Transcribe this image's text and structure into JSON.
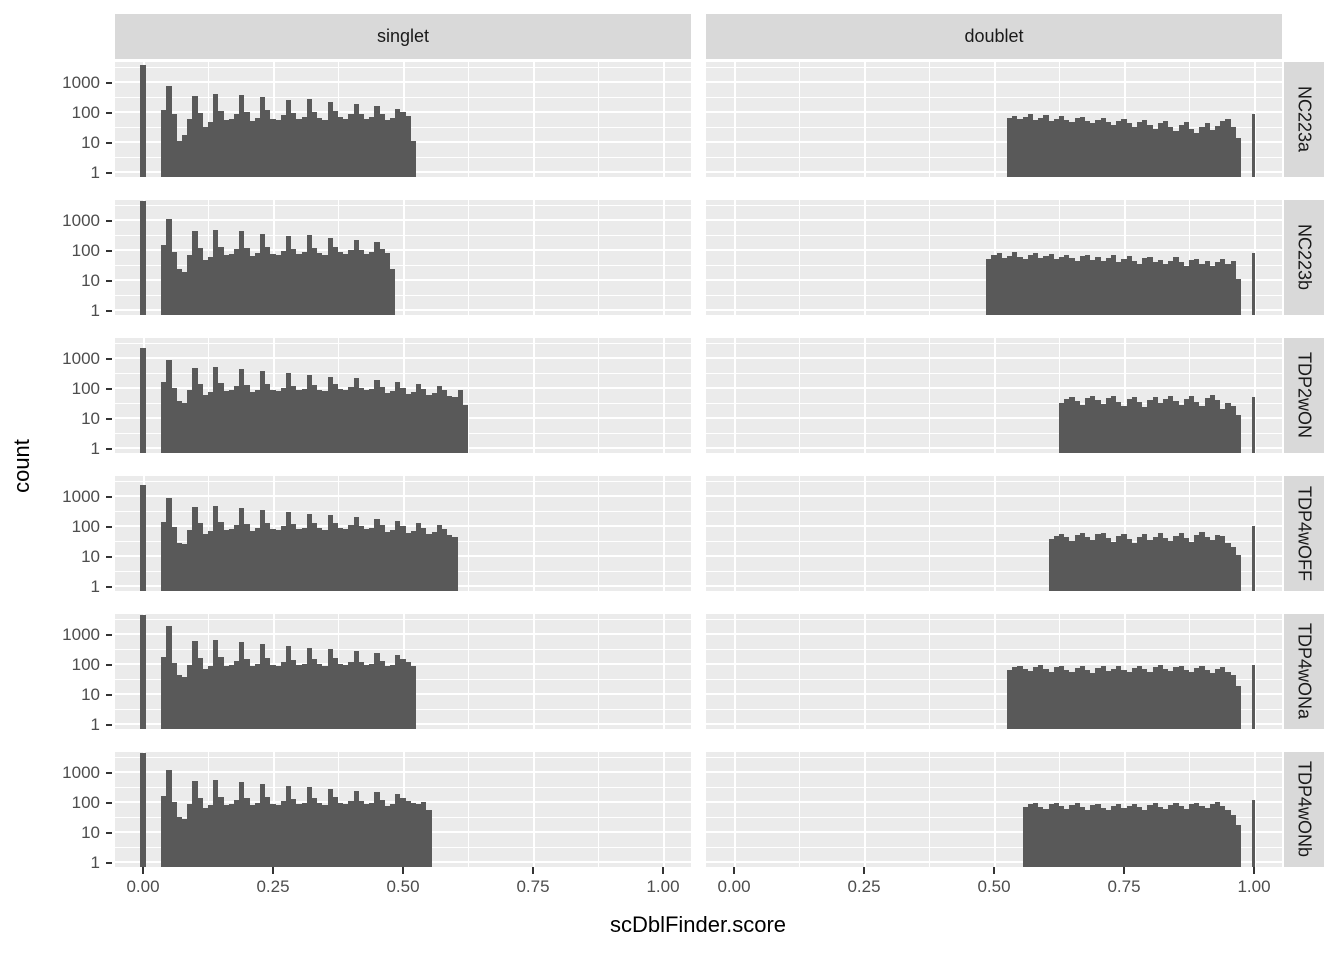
{
  "axes": {
    "x_title": "scDblFinder.score",
    "y_title": "count",
    "x_ticks": [
      {
        "label": "0.00",
        "value": 0.0
      },
      {
        "label": "0.25",
        "value": 0.25
      },
      {
        "label": "0.50",
        "value": 0.5
      },
      {
        "label": "0.75",
        "value": 0.75
      },
      {
        "label": "1.00",
        "value": 1.0
      }
    ],
    "y_ticks": [
      {
        "label": "1000",
        "value": 1000
      },
      {
        "label": "100",
        "value": 100
      },
      {
        "label": "10",
        "value": 10
      },
      {
        "label": "1",
        "value": 1
      }
    ]
  },
  "facets": {
    "columns": [
      "singlet",
      "doublet"
    ],
    "rows": [
      "NC223a",
      "NC223b",
      "TDP2wON",
      "TDP4wOFF",
      "TDP4wONa",
      "TDP4wONb"
    ]
  },
  "colors": {
    "bar": "#595959",
    "panel_background": "#EBEBEB",
    "strip_background": "#D9D9D9",
    "gridline": "#FFFFFF",
    "tick_text": "#4D4D4D",
    "title_text": "#000000"
  },
  "chart_data": {
    "type": "bar",
    "subtype": "faceted-histogram",
    "x_label": "scDblFinder.score",
    "y_label": "count",
    "y_scale": "log10",
    "x_range": [
      0,
      1
    ],
    "y_axis_breaks": [
      1,
      10,
      100,
      1000
    ],
    "bin_width": 0.01,
    "grid": "on",
    "facet_columns": [
      "singlet",
      "doublet"
    ],
    "rows": [
      {
        "sample": "NC223a",
        "singlet": {
          "zero_bin_count": 4000,
          "start": 0.035,
          "counts": [
            130,
            820,
            90,
            12,
            18,
            65,
            380,
            100,
            35,
            50,
            430,
            120,
            60,
            65,
            95,
            400,
            110,
            55,
            70,
            330,
            130,
            65,
            60,
            85,
            280,
            100,
            65,
            75,
            300,
            110,
            70,
            60,
            240,
            120,
            75,
            65,
            95,
            200,
            90,
            65,
            75,
            170,
            95,
            60,
            70,
            140,
            105,
            80,
            12
          ]
        },
        "doublet": {
          "start": 0.525,
          "one_bin_count": 90,
          "counts": [
            70,
            80,
            65,
            75,
            90,
            60,
            70,
            85,
            55,
            65,
            80,
            60,
            50,
            70,
            75,
            55,
            45,
            60,
            70,
            50,
            40,
            55,
            65,
            45,
            35,
            50,
            60,
            40,
            30,
            45,
            55,
            35,
            25,
            40,
            50,
            30,
            22,
            35,
            45,
            28,
            38,
            55,
            65,
            35,
            15
          ]
        }
      },
      {
        "sample": "NC223b",
        "singlet": {
          "zero_bin_count": 5200,
          "start": 0.035,
          "counts": [
            160,
            1150,
            95,
            25,
            20,
            75,
            450,
            130,
            50,
            65,
            520,
            140,
            75,
            80,
            115,
            450,
            130,
            70,
            85,
            370,
            140,
            80,
            75,
            100,
            320,
            120,
            80,
            90,
            340,
            130,
            85,
            75,
            280,
            140,
            90,
            80,
            110,
            240,
            105,
            80,
            90,
            200,
            115,
            85,
            25
          ]
        },
        "doublet": {
          "start": 0.485,
          "one_bin_count": 85,
          "counts": [
            55,
            75,
            85,
            60,
            70,
            90,
            65,
            55,
            75,
            85,
            60,
            70,
            80,
            55,
            65,
            75,
            58,
            48,
            68,
            72,
            52,
            62,
            48,
            58,
            72,
            44,
            54,
            66,
            48,
            38,
            58,
            62,
            42,
            52,
            38,
            48,
            62,
            42,
            32,
            52,
            56,
            38,
            46,
            32,
            42,
            56,
            36,
            46,
            12
          ]
        }
      },
      {
        "sample": "TDP2wON",
        "singlet": {
          "zero_bin_count": 2400,
          "start": 0.035,
          "counts": [
            170,
            900,
            110,
            40,
            35,
            90,
            520,
            150,
            65,
            80,
            560,
            160,
            85,
            90,
            130,
            480,
            140,
            80,
            95,
            400,
            150,
            90,
            85,
            110,
            340,
            130,
            90,
            100,
            300,
            140,
            95,
            85,
            260,
            150,
            100,
            90,
            120,
            230,
            110,
            90,
            100,
            200,
            120,
            75,
            85,
            170,
            110,
            70,
            80,
            150,
            100,
            65,
            75,
            130,
            90,
            60,
            55,
            90,
            30
          ]
        },
        "doublet": {
          "start": 0.625,
          "one_bin_count": 55,
          "counts": [
            35,
            45,
            55,
            40,
            30,
            50,
            60,
            42,
            32,
            52,
            58,
            38,
            28,
            46,
            56,
            36,
            26,
            44,
            54,
            34,
            45,
            58,
            40,
            30,
            48,
            60,
            38,
            28,
            50,
            62,
            42,
            22,
            35,
            28,
            14
          ]
        }
      },
      {
        "sample": "TDP4wOFF",
        "singlet": {
          "zero_bin_count": 2600,
          "start": 0.035,
          "counts": [
            150,
            950,
            100,
            30,
            28,
            80,
            480,
            140,
            60,
            75,
            520,
            150,
            80,
            85,
            120,
            440,
            130,
            75,
            90,
            370,
            140,
            85,
            80,
            105,
            320,
            125,
            85,
            95,
            280,
            135,
            90,
            80,
            250,
            140,
            95,
            85,
            115,
            220,
            105,
            85,
            95,
            190,
            115,
            70,
            80,
            160,
            105,
            65,
            75,
            140,
            95,
            60,
            70,
            120,
            85,
            55,
            45
          ]
        },
        "doublet": {
          "start": 0.605,
          "one_bin_count": 110,
          "counts": [
            40,
            50,
            60,
            45,
            35,
            55,
            65,
            48,
            38,
            58,
            62,
            42,
            32,
            50,
            60,
            40,
            30,
            48,
            58,
            38,
            48,
            62,
            44,
            34,
            52,
            64,
            42,
            32,
            54,
            66,
            46,
            36,
            56,
            50,
            30,
            22,
            12
          ]
        }
      },
      {
        "sample": "TDP4wONa",
        "singlet": {
          "zero_bin_count": 5800,
          "start": 0.035,
          "counts": [
            180,
            2000,
            120,
            45,
            40,
            100,
            650,
            170,
            75,
            90,
            700,
            180,
            95,
            100,
            140,
            600,
            160,
            90,
            105,
            500,
            170,
            100,
            95,
            125,
            430,
            150,
            100,
            110,
            380,
            160,
            105,
            95,
            330,
            170,
            110,
            100,
            130,
            290,
            125,
            100,
            110,
            250,
            135,
            90,
            100,
            220,
            160,
            130,
            90
          ]
        },
        "doublet": {
          "start": 0.525,
          "one_bin_count": 100,
          "counts": [
            70,
            85,
            95,
            72,
            62,
            88,
            98,
            75,
            60,
            85,
            95,
            70,
            58,
            80,
            92,
            68,
            55,
            78,
            90,
            65,
            75,
            92,
            70,
            58,
            82,
            95,
            72,
            60,
            85,
            98,
            75,
            62,
            88,
            95,
            70,
            58,
            80,
            90,
            68,
            55,
            75,
            85,
            60,
            45,
            20
          ]
        }
      },
      {
        "sample": "TDP4wONb",
        "singlet": {
          "zero_bin_count": 5200,
          "start": 0.035,
          "counts": [
            170,
            1250,
            110,
            35,
            30,
            90,
            560,
            150,
            68,
            85,
            600,
            160,
            88,
            92,
            130,
            520,
            150,
            85,
            98,
            440,
            155,
            92,
            88,
            115,
            380,
            140,
            92,
            102,
            340,
            150,
            98,
            88,
            300,
            155,
            102,
            92,
            120,
            260,
            115,
            92,
            102,
            230,
            125,
            82,
            92,
            200,
            145,
            115,
            100,
            90,
            110,
            60
          ]
        },
        "doublet": {
          "start": 0.555,
          "one_bin_count": 130,
          "counts": [
            75,
            90,
            100,
            76,
            64,
            90,
            100,
            78,
            62,
            88,
            98,
            72,
            60,
            84,
            95,
            70,
            58,
            82,
            94,
            68,
            78,
            95,
            72,
            60,
            85,
            98,
            75,
            62,
            88,
            100,
            78,
            64,
            90,
            102,
            80,
            66,
            92,
            105,
            82,
            60,
            40,
            18
          ]
        }
      }
    ]
  }
}
